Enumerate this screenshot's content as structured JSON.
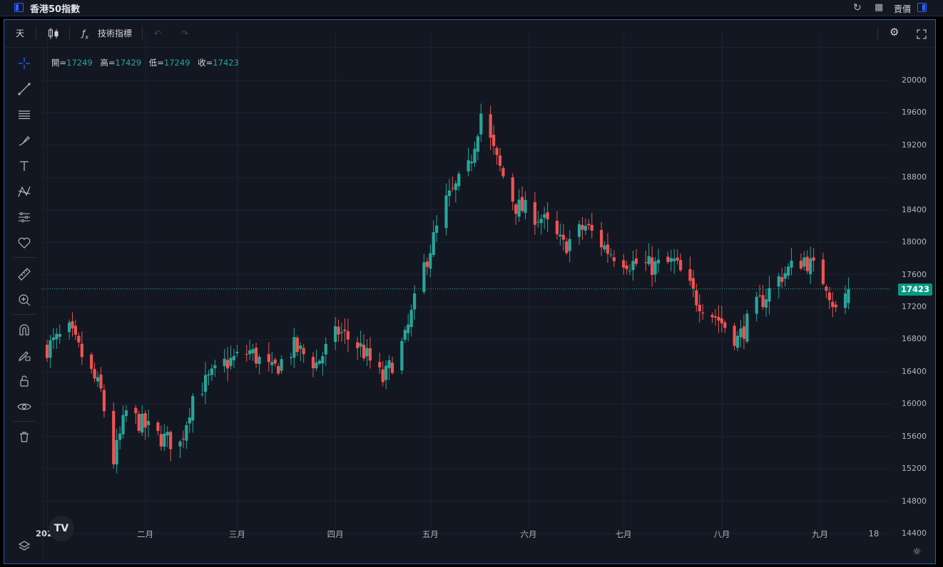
{
  "window": {
    "title": "香港50指數",
    "price_type": "賣價"
  },
  "toolbar": {
    "interval": "天",
    "indicators": "技術指標"
  },
  "legend": {
    "open_label": "開=",
    "open": "17249",
    "high_label": "高=",
    "high": "17429",
    "low_label": "低=",
    "low": "17249",
    "close_label": "收=",
    "close": "17423"
  },
  "left_tools": [
    "crosshair-icon",
    "trend-line-icon",
    "fib-levels-icon",
    "brush-icon",
    "text-icon",
    "pattern-icon",
    "forecast-icon",
    "favorite-icon",
    "ruler-icon",
    "zoom-in-icon",
    "magnet-icon",
    "lock-drawing-icon",
    "unlock-icon",
    "eye-icon",
    "trash-icon"
  ],
  "colors": {
    "up": "#26a69a",
    "down": "#ef5350",
    "bg": "#131722",
    "grid": "#1f2330",
    "accent": "#2962ff"
  },
  "chart_data": {
    "type": "candlestick",
    "symbol": "香港50指數",
    "last_price": "17423",
    "ylim": [
      14300,
      20200
    ],
    "y_ticks": [
      "20000",
      "19600",
      "19200",
      "18800",
      "18400",
      "18000",
      "17600",
      "17200",
      "16800",
      "16400",
      "16000",
      "15600",
      "15200",
      "14800",
      "14400"
    ],
    "x_ticks": [
      "2024",
      "二月",
      "三月",
      "四月",
      "五月",
      "六月",
      "七月",
      "八月",
      "九月",
      "18"
    ],
    "monthly_path": [
      {
        "date": "2024-01-01",
        "close": 16700
      },
      {
        "date": "2024-01-08",
        "close": 16900
      },
      {
        "date": "2024-01-12",
        "close": 16600
      },
      {
        "date": "2024-01-18",
        "close": 16150
      },
      {
        "date": "2024-01-22",
        "close": 15300
      },
      {
        "date": "2024-01-26",
        "close": 15900
      },
      {
        "date": "2024-02-05",
        "close": 15600
      },
      {
        "date": "2024-02-12",
        "close": 15500
      },
      {
        "date": "2024-02-16",
        "close": 16100
      },
      {
        "date": "2024-02-26",
        "close": 16500
      },
      {
        "date": "2024-03-05",
        "close": 16650
      },
      {
        "date": "2024-03-12",
        "close": 16400
      },
      {
        "date": "2024-03-19",
        "close": 16700
      },
      {
        "date": "2024-03-26",
        "close": 16500
      },
      {
        "date": "2024-04-02",
        "close": 16900
      },
      {
        "date": "2024-04-09",
        "close": 16700
      },
      {
        "date": "2024-04-16",
        "close": 16300
      },
      {
        "date": "2024-04-23",
        "close": 16800
      },
      {
        "date": "2024-04-29",
        "close": 17700
      },
      {
        "date": "2024-05-06",
        "close": 18500
      },
      {
        "date": "2024-05-13",
        "close": 18900
      },
      {
        "date": "2024-05-17",
        "close": 19600
      },
      {
        "date": "2024-05-22",
        "close": 19000
      },
      {
        "date": "2024-05-28",
        "close": 18450
      },
      {
        "date": "2024-06-05",
        "close": 18300
      },
      {
        "date": "2024-06-12",
        "close": 17950
      },
      {
        "date": "2024-06-19",
        "close": 18200
      },
      {
        "date": "2024-06-26",
        "close": 17900
      },
      {
        "date": "2024-07-03",
        "close": 17750
      },
      {
        "date": "2024-07-10",
        "close": 17700
      },
      {
        "date": "2024-07-17",
        "close": 17750
      },
      {
        "date": "2024-07-24",
        "close": 17300
      },
      {
        "date": "2024-07-31",
        "close": 17050
      },
      {
        "date": "2024-08-06",
        "close": 16800
      },
      {
        "date": "2024-08-12",
        "close": 17200
      },
      {
        "date": "2024-08-20",
        "close": 17600
      },
      {
        "date": "2024-08-27",
        "close": 17800
      },
      {
        "date": "2024-09-03",
        "close": 17500
      },
      {
        "date": "2024-09-06",
        "close": 17150
      },
      {
        "date": "2024-09-10",
        "close": 17423
      }
    ]
  }
}
